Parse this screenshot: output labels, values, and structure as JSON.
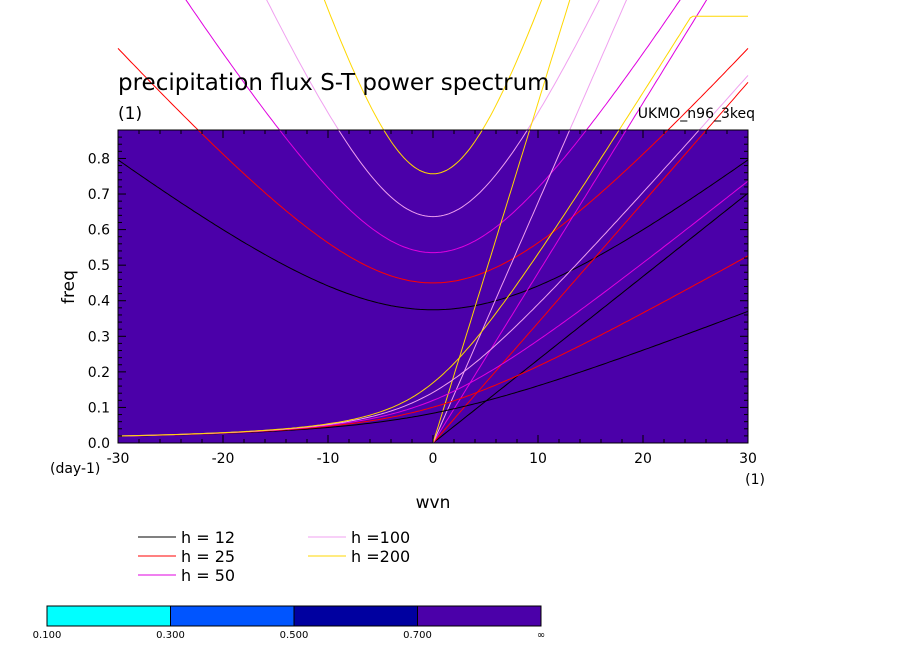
{
  "chart_data": {
    "type": "line",
    "title": "precipitation flux S-T power spectrum",
    "subtitle_left": "(1)",
    "subtitle_right": "UKMO_n96_3keq",
    "xlabel": "wvn",
    "ylabel": "freq",
    "x_unit": "(1)",
    "y_unit": "(day-1)",
    "xlim": [
      -30,
      30
    ],
    "ylim": [
      0,
      0.88
    ],
    "x_ticks": [
      "-30",
      "-20",
      "-10",
      "0",
      "10",
      "20",
      "30"
    ],
    "y_ticks": [
      "0.0",
      "0.1",
      "0.2",
      "0.3",
      "0.4",
      "0.5",
      "0.6",
      "0.7",
      "0.8"
    ],
    "background_color": "#4B00A9",
    "series": [
      {
        "name": "h = 12",
        "color": "#000000",
        "dispersion": {
          "mode": "inertia_gravity",
          "h": 12
        }
      },
      {
        "name": "h = 25",
        "color": "#FF0000",
        "dispersion": {
          "mode": "inertia_gravity",
          "h": 25
        }
      },
      {
        "name": "h = 50",
        "color": "#E000E0",
        "dispersion": {
          "mode": "inertia_gravity",
          "h": 50
        }
      },
      {
        "name": "h =100",
        "color": "#F0A0F0",
        "dispersion": {
          "mode": "inertia_gravity",
          "h": 100
        }
      },
      {
        "name": "h =200",
        "color": "#FFD700",
        "dispersion": {
          "mode": "inertia_gravity",
          "h": 200
        }
      },
      {
        "name": "",
        "color": "#000000",
        "dispersion": {
          "mode": "kelvin",
          "h": 12
        }
      },
      {
        "name": "",
        "color": "#FF0000",
        "dispersion": {
          "mode": "kelvin",
          "h": 25
        }
      },
      {
        "name": "",
        "color": "#E000E0",
        "dispersion": {
          "mode": "kelvin",
          "h": 50
        }
      },
      {
        "name": "",
        "color": "#F0A0F0",
        "dispersion": {
          "mode": "kelvin",
          "h": 100
        }
      },
      {
        "name": "",
        "color": "#FFD700",
        "dispersion": {
          "mode": "kelvin",
          "h": 200
        }
      }
    ],
    "legend_placement": "bottom-left",
    "colorbar": {
      "labels": [
        "0.100",
        "0.300",
        "0.500",
        "0.700",
        "∞"
      ],
      "colors": [
        "#00FFFF",
        "#0055FF",
        "#0000A0",
        "#4B00A9"
      ]
    }
  }
}
